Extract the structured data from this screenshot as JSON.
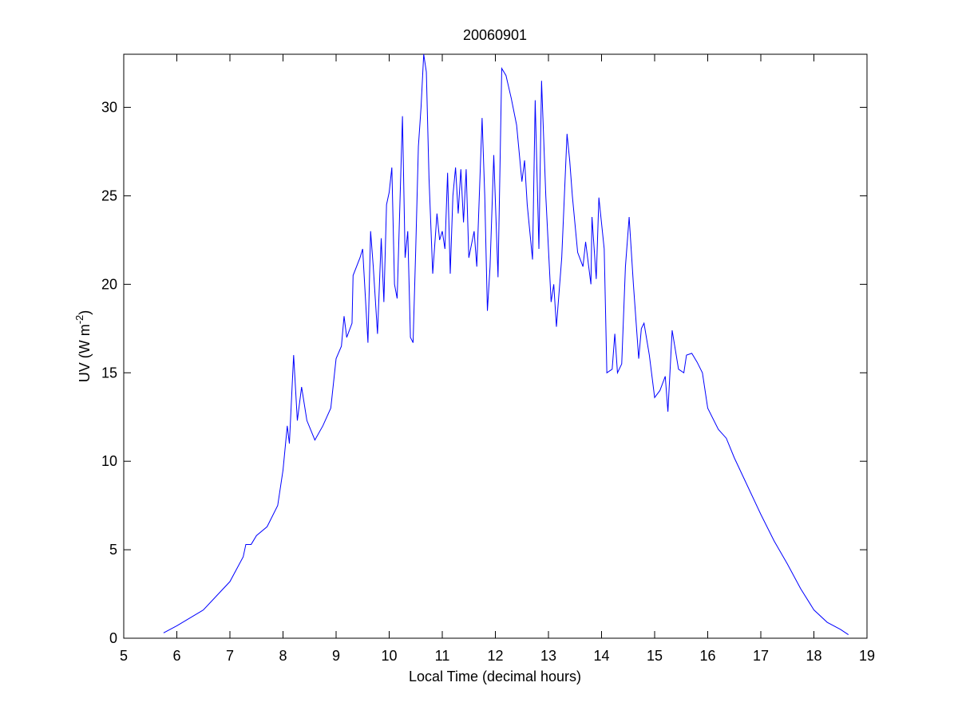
{
  "chart_data": {
    "type": "line",
    "title": "20060901",
    "xlabel": "Local Time (decimal hours)",
    "ylabel": [
      "UV (W m",
      "-2",
      ")"
    ],
    "xlim": [
      5,
      19
    ],
    "ylim": [
      0,
      33
    ],
    "xticks": [
      5,
      6,
      7,
      8,
      9,
      10,
      11,
      12,
      13,
      14,
      15,
      16,
      17,
      18,
      19
    ],
    "yticks": [
      0,
      5,
      10,
      15,
      20,
      25,
      30
    ],
    "grid": false,
    "series": [
      {
        "color": "#0000ff",
        "x": [
          5.75,
          6.0,
          6.5,
          7.0,
          7.25,
          7.3,
          7.4,
          7.5,
          7.7,
          7.9,
          8.0,
          8.08,
          8.12,
          8.2,
          8.27,
          8.35,
          8.45,
          8.6,
          8.75,
          8.9,
          9.0,
          9.1,
          9.15,
          9.2,
          9.3,
          9.32,
          9.45,
          9.5,
          9.6,
          9.65,
          9.7,
          9.78,
          9.85,
          9.9,
          9.95,
          10.0,
          10.05,
          10.1,
          10.15,
          10.25,
          10.3,
          10.35,
          10.4,
          10.45,
          10.5,
          10.55,
          10.6,
          10.65,
          10.7,
          10.75,
          10.82,
          10.9,
          10.95,
          11.0,
          11.05,
          11.1,
          11.15,
          11.2,
          11.25,
          11.3,
          11.35,
          11.4,
          11.45,
          11.5,
          11.6,
          11.65,
          11.75,
          11.8,
          11.85,
          11.9,
          11.97,
          12.05,
          12.12,
          12.2,
          12.3,
          12.4,
          12.5,
          12.55,
          12.6,
          12.7,
          12.75,
          12.82,
          12.87,
          12.95,
          13.05,
          13.1,
          13.15,
          13.25,
          13.35,
          13.4,
          13.45,
          13.55,
          13.65,
          13.7,
          13.8,
          13.82,
          13.9,
          13.95,
          14.05,
          14.1,
          14.2,
          14.25,
          14.3,
          14.38,
          14.45,
          14.52,
          14.6,
          14.7,
          14.75,
          14.8,
          14.9,
          15.0,
          15.1,
          15.2,
          15.25,
          15.33,
          15.45,
          15.55,
          15.6,
          15.7,
          15.8,
          15.9,
          16.0,
          16.2,
          16.35,
          16.5,
          16.75,
          17.0,
          17.25,
          17.5,
          17.75,
          18.0,
          18.25,
          18.5,
          18.65
        ],
        "values": [
          0.3,
          0.7,
          1.6,
          3.2,
          4.6,
          5.3,
          5.3,
          5.8,
          6.3,
          7.5,
          9.5,
          12.0,
          11.0,
          16.0,
          12.3,
          14.2,
          12.3,
          11.2,
          12.0,
          13.0,
          15.8,
          16.5,
          18.2,
          17.0,
          17.8,
          20.5,
          21.5,
          22.0,
          16.7,
          23.0,
          21.0,
          17.2,
          22.6,
          19.0,
          24.5,
          25.2,
          26.6,
          20.0,
          19.2,
          29.5,
          21.5,
          23.0,
          17.0,
          16.7,
          22.0,
          27.8,
          30.0,
          33.0,
          32.0,
          26.0,
          20.6,
          24.0,
          22.5,
          23.0,
          22.0,
          26.3,
          20.6,
          25.0,
          26.6,
          24.0,
          26.5,
          23.5,
          26.5,
          21.5,
          23.0,
          21.0,
          29.4,
          25.0,
          18.5,
          21.0,
          27.3,
          20.4,
          32.2,
          31.8,
          30.5,
          29.0,
          25.8,
          27.0,
          24.5,
          21.4,
          30.4,
          22.0,
          31.5,
          25.0,
          19.0,
          20.0,
          17.6,
          21.5,
          28.5,
          27.0,
          25.0,
          21.8,
          21.0,
          22.4,
          20.0,
          23.8,
          20.3,
          24.9,
          22.0,
          15.0,
          15.2,
          17.2,
          15.0,
          15.5,
          21.0,
          23.8,
          20.0,
          15.8,
          17.5,
          17.8,
          16.0,
          13.6,
          14.0,
          14.8,
          12.8,
          17.4,
          15.2,
          15.0,
          16.0,
          16.1,
          15.6,
          15.0,
          13.0,
          11.8,
          11.3,
          10.2,
          8.6,
          7.0,
          5.5,
          4.2,
          2.8,
          1.6,
          0.9,
          0.5,
          0.2
        ]
      }
    ]
  }
}
